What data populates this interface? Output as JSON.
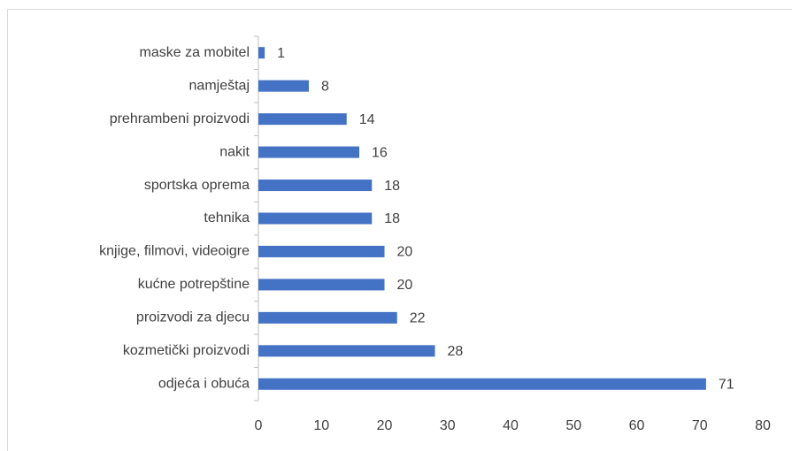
{
  "chart_data": {
    "type": "barh",
    "categories": [
      "maske za mobitel",
      "namještaj",
      "prehrambeni proizvodi",
      "nakit",
      "sportska oprema",
      "tehnika",
      "knjige, filmovi, videoigre",
      "kućne potrepštine",
      "proizvodi za djecu",
      "kozmetički proizvodi",
      "odjeća i obuća"
    ],
    "values": [
      1,
      8,
      14,
      16,
      18,
      18,
      20,
      20,
      22,
      28,
      71
    ],
    "color": "#4472c4",
    "xlim": [
      0,
      80
    ],
    "xticks": [
      0,
      10,
      20,
      30,
      40,
      50,
      60,
      70,
      80
    ],
    "grid": false
  }
}
